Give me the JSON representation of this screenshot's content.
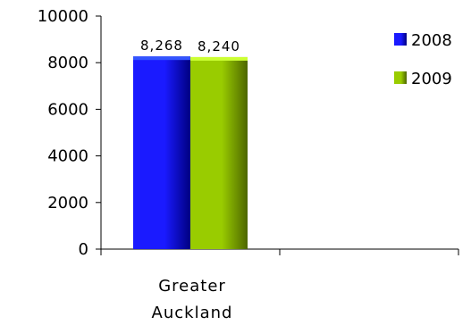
{
  "chart_data": {
    "type": "bar",
    "categories": [
      "Greater Auckland",
      ""
    ],
    "category_label_lines": [
      [
        "Greater",
        "Auckland"
      ],
      []
    ],
    "series": [
      {
        "name": "2008",
        "values": [
          8268,
          null
        ],
        "labels": [
          "8,268",
          ""
        ],
        "color_top": "#3355ff",
        "color_mid": "#1a1aff",
        "color_dark": "#000080"
      },
      {
        "name": "2009",
        "values": [
          8240,
          null
        ],
        "labels": [
          "8,240",
          ""
        ],
        "color_top": "#ccff33",
        "color_mid": "#99cc00",
        "color_dark": "#4d6600"
      }
    ],
    "ylim": [
      0,
      10000
    ],
    "yticks": [
      0,
      2000,
      4000,
      6000,
      8000,
      10000
    ],
    "ytick_labels": [
      "0",
      "2000",
      "4000",
      "6000",
      "8000",
      "10000"
    ],
    "title": "",
    "xlabel": "",
    "ylabel": "",
    "legend_position": "top-right",
    "grid": false
  }
}
